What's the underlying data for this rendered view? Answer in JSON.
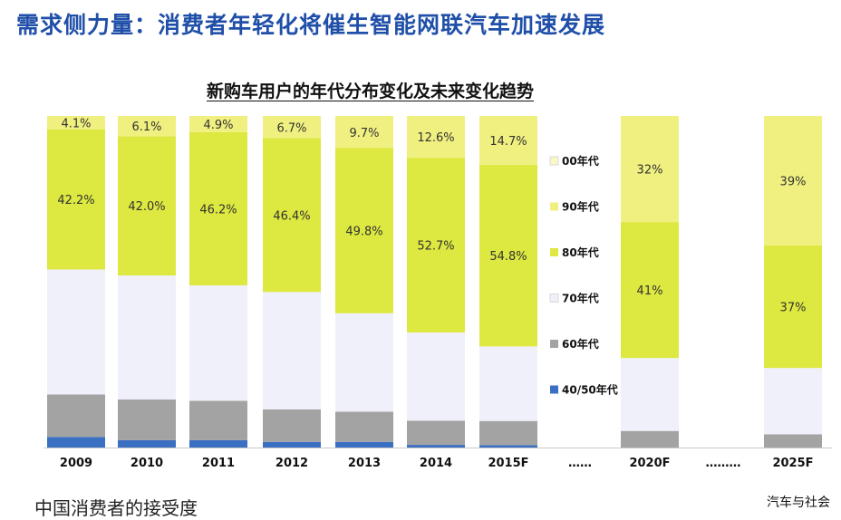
{
  "header": {
    "title": "需求侧力量：消费者年轻化将催生智能网联汽车加速发展"
  },
  "footer": {
    "left_text": "中国消费者的接受度",
    "source_text": "汽车与社会"
  },
  "chart_data": {
    "type": "bar",
    "stacked": true,
    "title": "新购车用户的年代分布变化及未来变化趋势",
    "xlabel": "",
    "ylabel": "",
    "ylim": [
      0,
      100
    ],
    "categories": [
      "2009",
      "2010",
      "2011",
      "2012",
      "2013",
      "2014",
      "2015F",
      "2020F",
      "2025F"
    ],
    "ellipses": [
      "……",
      "………"
    ],
    "legend_position": "right",
    "series": [
      {
        "name": "40/50年代",
        "color": "#3b6fc2",
        "values": [
          3.2,
          2.2,
          2.2,
          1.7,
          1.7,
          0.8,
          0.7,
          0,
          0
        ]
      },
      {
        "name": "60年代",
        "color": "#a3a3a3",
        "values": [
          12.8,
          12.3,
          11.9,
          9.8,
          9.1,
          7.3,
          7.3,
          5,
          4
        ]
      },
      {
        "name": "70年代",
        "color": "#f0f0fa",
        "values": [
          37.7,
          37.4,
          34.8,
          35.4,
          29.7,
          26.6,
          22.5,
          22,
          20
        ]
      },
      {
        "name": "80年代",
        "color": "#dde840",
        "values": [
          42.2,
          42.0,
          46.2,
          46.4,
          49.8,
          52.7,
          54.8,
          41,
          37
        ]
      },
      {
        "name": "90年代",
        "color": "#f0f080",
        "values": [
          4.1,
          6.1,
          4.9,
          6.7,
          9.7,
          12.6,
          14.7,
          32,
          39
        ]
      },
      {
        "name": "00年代",
        "color": "#fbf6c8",
        "values": [
          0,
          0,
          0,
          0,
          0,
          0,
          0,
          0,
          0
        ]
      }
    ],
    "data_labels": [
      {
        "category": "2009",
        "series": "80年代",
        "text": "42.2%"
      },
      {
        "category": "2010",
        "series": "80年代",
        "text": "42.0%"
      },
      {
        "category": "2011",
        "series": "80年代",
        "text": "46.2%"
      },
      {
        "category": "2012",
        "series": "80年代",
        "text": "46.4%"
      },
      {
        "category": "2013",
        "series": "80年代",
        "text": "49.8%"
      },
      {
        "category": "2014",
        "series": "80年代",
        "text": "52.7%"
      },
      {
        "category": "2015F",
        "series": "80年代",
        "text": "54.8%"
      },
      {
        "category": "2020F",
        "series": "80年代",
        "text": "41%"
      },
      {
        "category": "2025F",
        "series": "80年代",
        "text": "37%"
      },
      {
        "category": "2009",
        "series": "90年代",
        "text": "4.1%"
      },
      {
        "category": "2010",
        "series": "90年代",
        "text": "6.1%"
      },
      {
        "category": "2011",
        "series": "90年代",
        "text": "4.9%"
      },
      {
        "category": "2012",
        "series": "90年代",
        "text": "6.7%"
      },
      {
        "category": "2013",
        "series": "90年代",
        "text": "9.7%"
      },
      {
        "category": "2014",
        "series": "90年代",
        "text": "12.6%"
      },
      {
        "category": "2015F",
        "series": "90年代",
        "text": "14.7%"
      },
      {
        "category": "2020F",
        "series": "90年代",
        "text": "32%"
      },
      {
        "category": "2025F",
        "series": "90年代",
        "text": "39%"
      }
    ],
    "legend_order": [
      "00年代",
      "90年代",
      "80年代",
      "70年代",
      "60年代",
      "40/50年代"
    ]
  }
}
